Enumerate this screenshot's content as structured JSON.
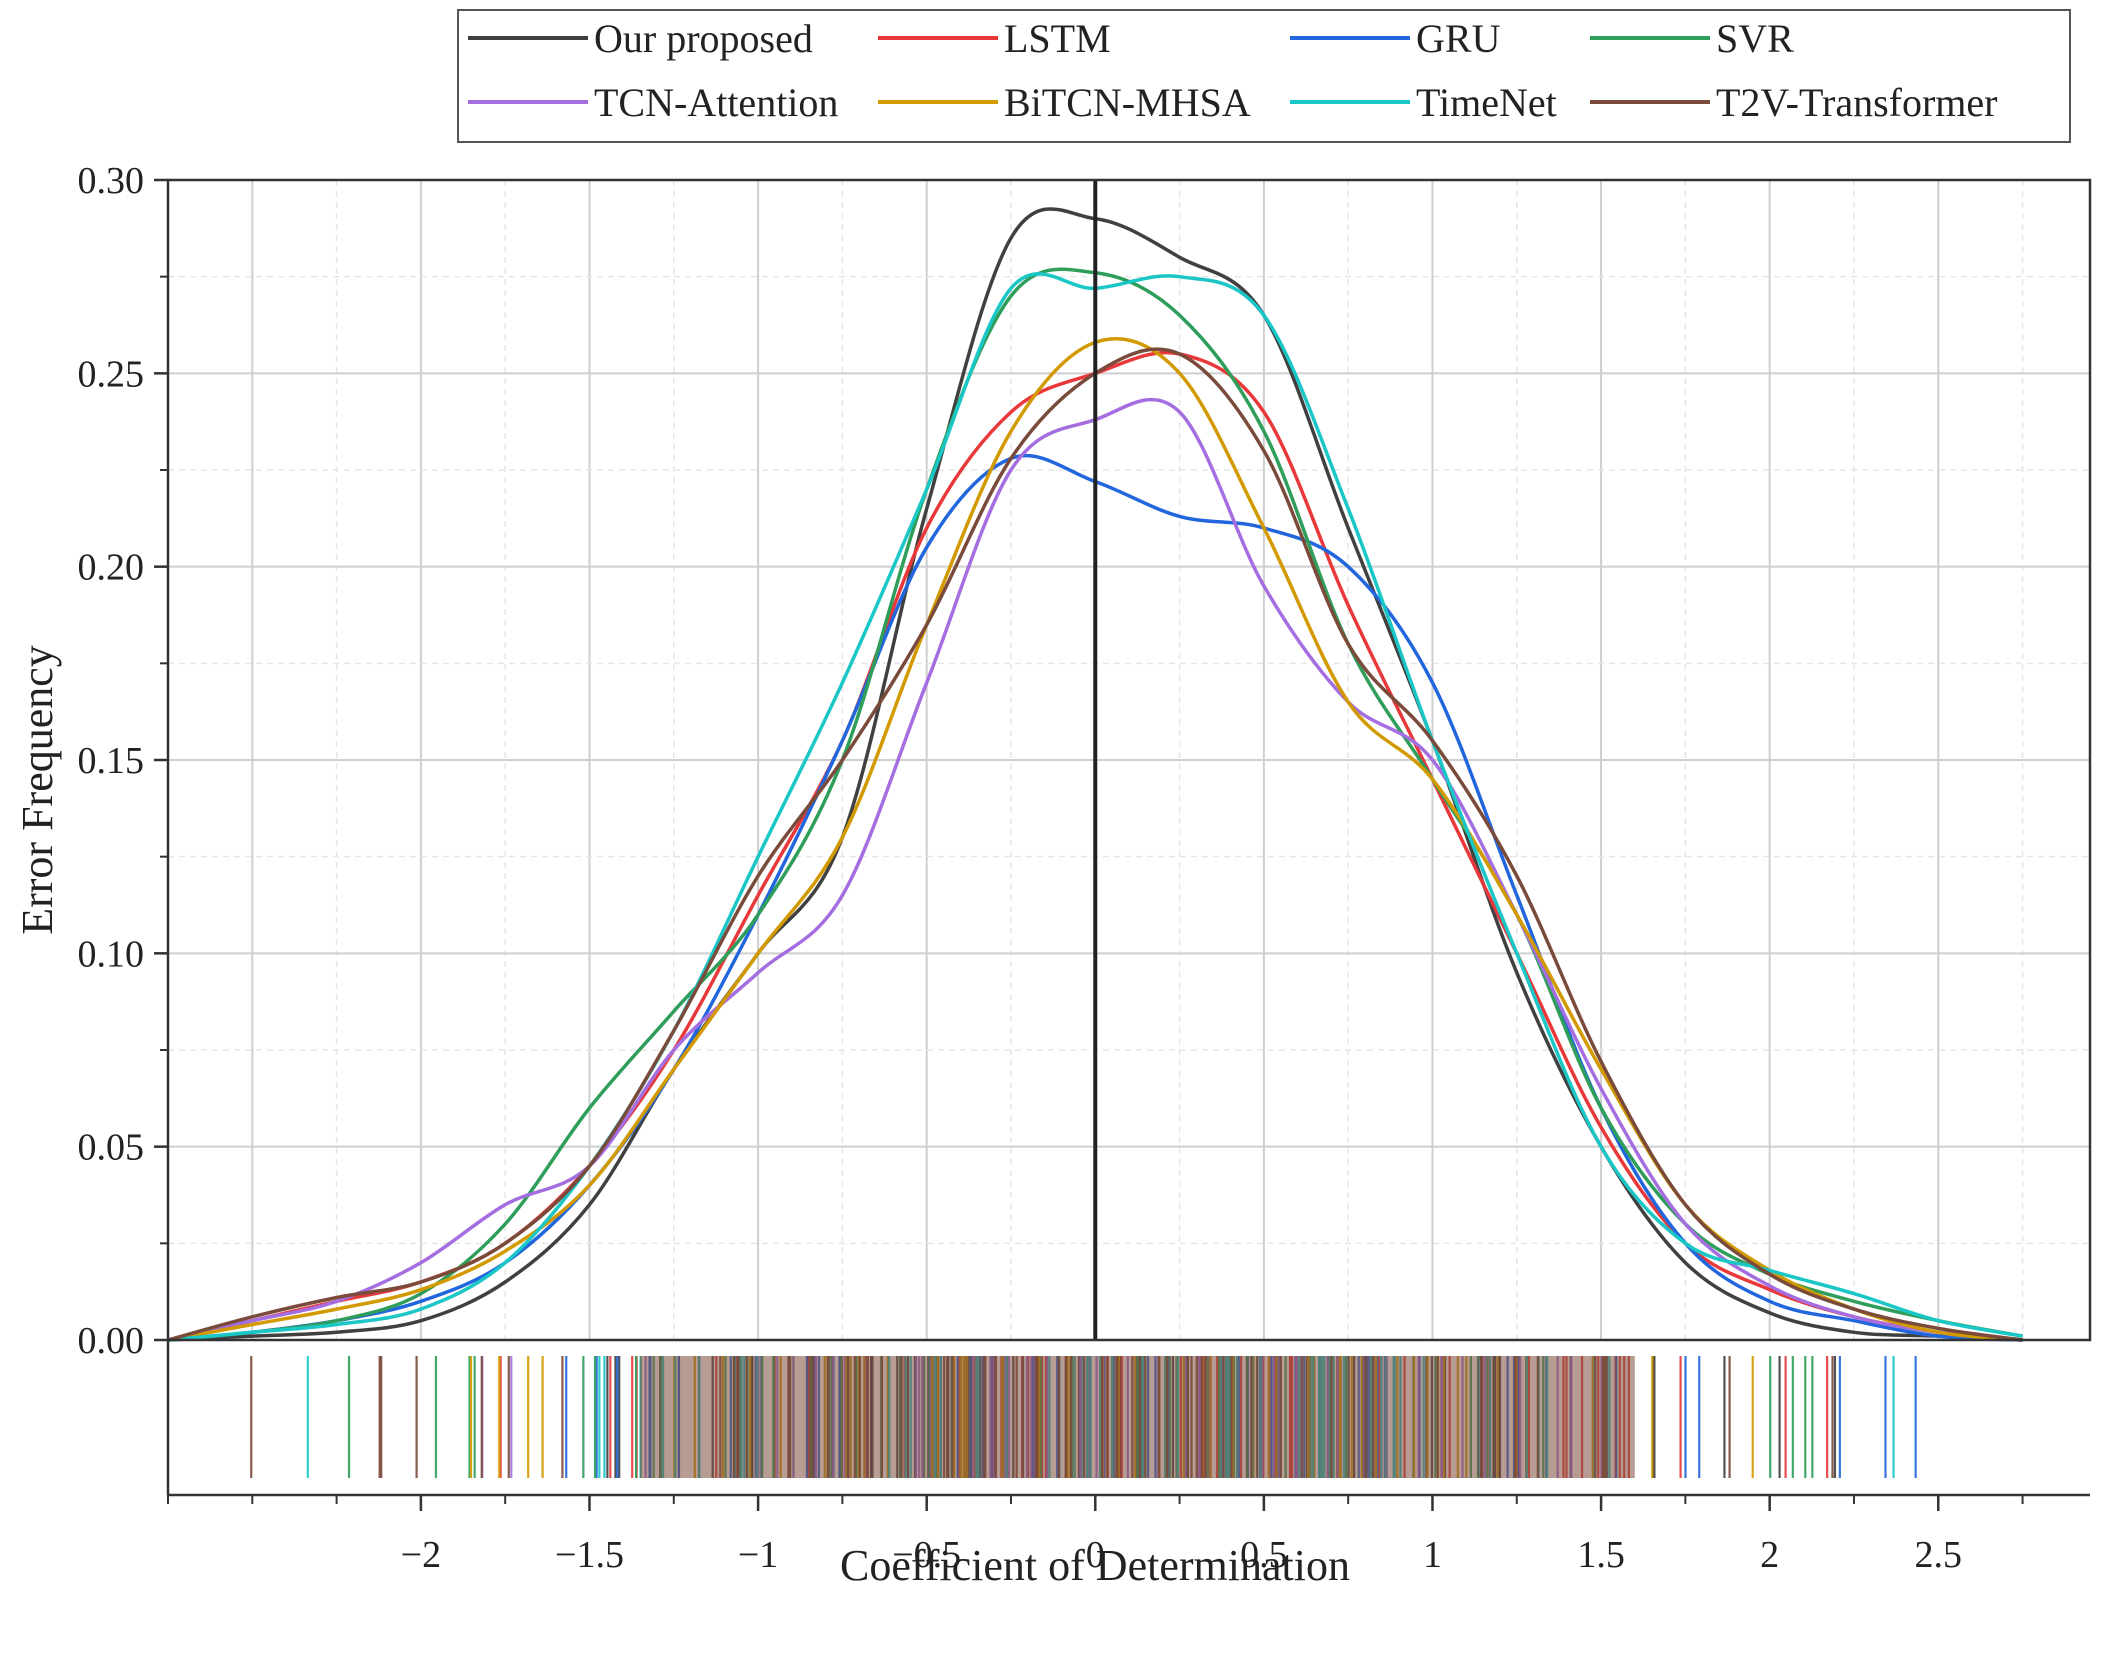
{
  "chart_data": {
    "type": "line",
    "title": "",
    "xlabel": "Coefficient of Determination",
    "ylabel": "Error Frequency",
    "xlim": [
      -2.75,
      2.95
    ],
    "ylim": [
      0,
      0.3
    ],
    "x_ticks": [
      -2,
      -1.5,
      -1,
      -0.5,
      0,
      0.5,
      1,
      1.5,
      2,
      2.5
    ],
    "x_tick_labels": [
      "−2",
      "−1.5",
      "−1",
      "−0.5",
      "0",
      "0.5",
      "1",
      "1.5",
      "2",
      "2.5"
    ],
    "y_ticks": [
      0,
      0.05,
      0.1,
      0.15,
      0.2,
      0.25,
      0.3
    ],
    "y_tick_labels": [
      "0.00",
      "0.05",
      "0.10",
      "0.15",
      "0.20",
      "0.25",
      "0.30"
    ],
    "grid": true,
    "zero_line": 0,
    "legend": "top",
    "x": [
      -2.75,
      -2.5,
      -2.25,
      -2.0,
      -1.75,
      -1.5,
      -1.25,
      -1.0,
      -0.75,
      -0.5,
      -0.25,
      0.0,
      0.25,
      0.5,
      0.75,
      1.0,
      1.25,
      1.5,
      1.75,
      2.0,
      2.25,
      2.5,
      2.75
    ],
    "series": [
      {
        "name": "Our proposed",
        "color": "#404040",
        "values": [
          0.0,
          0.001,
          0.002,
          0.005,
          0.015,
          0.035,
          0.07,
          0.1,
          0.13,
          0.215,
          0.285,
          0.29,
          0.28,
          0.265,
          0.21,
          0.155,
          0.095,
          0.05,
          0.02,
          0.007,
          0.002,
          0.001,
          0.0
        ]
      },
      {
        "name": "LSTM",
        "color": "#e8383a",
        "values": [
          0.0,
          0.005,
          0.01,
          0.015,
          0.025,
          0.045,
          0.075,
          0.115,
          0.155,
          0.21,
          0.24,
          0.25,
          0.255,
          0.24,
          0.19,
          0.145,
          0.1,
          0.055,
          0.025,
          0.013,
          0.006,
          0.002,
          0.0
        ]
      },
      {
        "name": "GRU",
        "color": "#2266dd",
        "values": [
          0.0,
          0.002,
          0.005,
          0.01,
          0.02,
          0.04,
          0.07,
          0.11,
          0.155,
          0.205,
          0.228,
          0.222,
          0.213,
          0.21,
          0.2,
          0.17,
          0.115,
          0.06,
          0.025,
          0.01,
          0.005,
          0.001,
          0.0
        ]
      },
      {
        "name": "SVR",
        "color": "#2e9e5a",
        "values": [
          0.0,
          0.002,
          0.005,
          0.012,
          0.03,
          0.06,
          0.085,
          0.11,
          0.15,
          0.22,
          0.27,
          0.276,
          0.265,
          0.235,
          0.18,
          0.145,
          0.11,
          0.06,
          0.03,
          0.017,
          0.01,
          0.005,
          0.001
        ]
      },
      {
        "name": "TCN-Attention",
        "color": "#a56ee0",
        "values": [
          0.0,
          0.005,
          0.01,
          0.02,
          0.035,
          0.045,
          0.075,
          0.095,
          0.115,
          0.17,
          0.225,
          0.238,
          0.24,
          0.195,
          0.165,
          0.15,
          0.11,
          0.065,
          0.03,
          0.014,
          0.006,
          0.002,
          0.0
        ]
      },
      {
        "name": "BiTCN-MHSA",
        "color": "#d29a00",
        "values": [
          0.0,
          0.004,
          0.008,
          0.013,
          0.023,
          0.04,
          0.07,
          0.1,
          0.13,
          0.185,
          0.235,
          0.258,
          0.25,
          0.21,
          0.165,
          0.145,
          0.11,
          0.07,
          0.035,
          0.018,
          0.008,
          0.002,
          0.0
        ]
      },
      {
        "name": "TimeNet",
        "color": "#1ac6c6",
        "values": [
          0.0,
          0.002,
          0.004,
          0.008,
          0.02,
          0.045,
          0.08,
          0.125,
          0.17,
          0.22,
          0.272,
          0.272,
          0.275,
          0.265,
          0.215,
          0.155,
          0.1,
          0.05,
          0.025,
          0.018,
          0.012,
          0.005,
          0.001
        ]
      },
      {
        "name": "T2V-Transformer",
        "color": "#7a4a3a",
        "values": [
          0.0,
          0.006,
          0.011,
          0.015,
          0.025,
          0.045,
          0.08,
          0.12,
          0.15,
          0.185,
          0.228,
          0.25,
          0.255,
          0.23,
          0.18,
          0.155,
          0.12,
          0.072,
          0.035,
          0.017,
          0.008,
          0.003,
          0.0
        ]
      }
    ]
  }
}
